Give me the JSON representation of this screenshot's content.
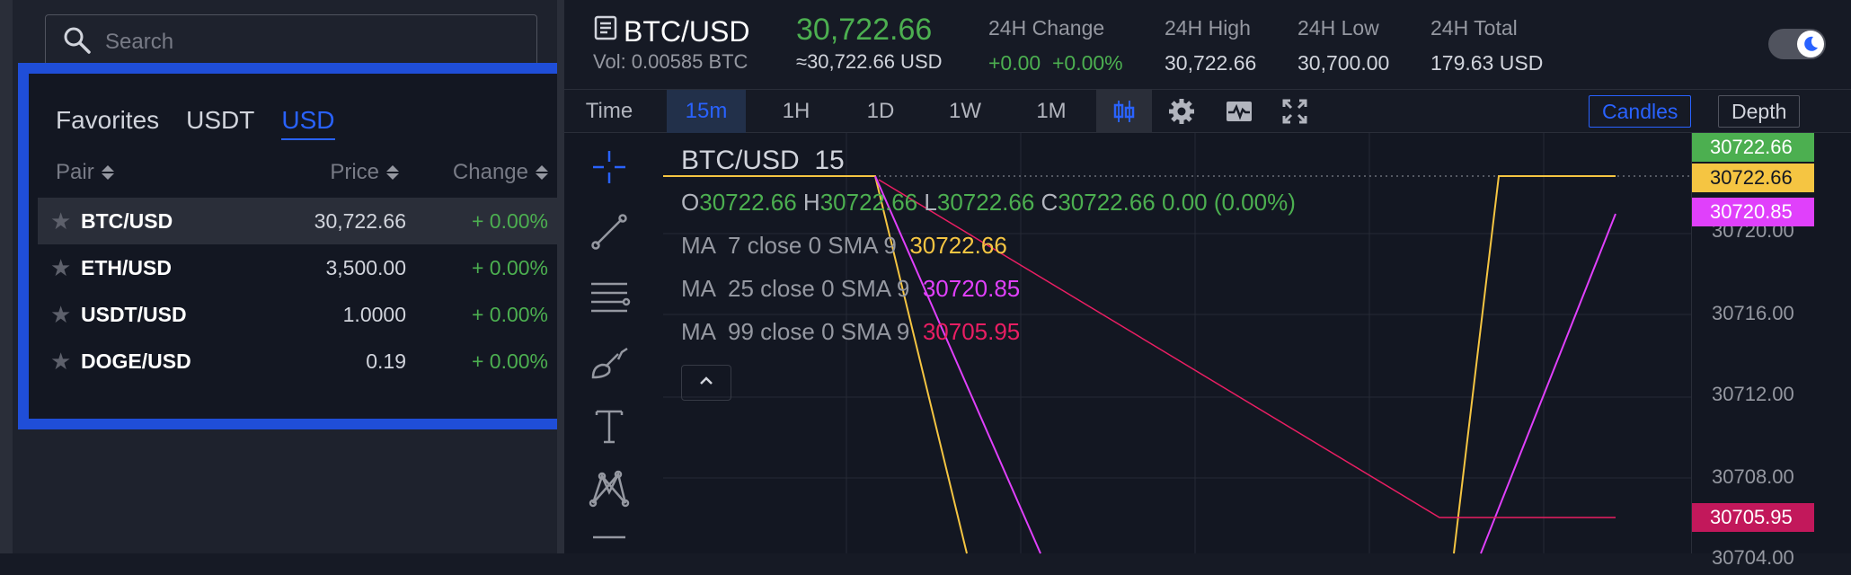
{
  "search": {
    "placeholder": "Search"
  },
  "pairs_panel": {
    "tabs": [
      {
        "label": "Favorites"
      },
      {
        "label": "USDT"
      },
      {
        "label": "USD"
      }
    ],
    "active_tab": "USD",
    "columns": {
      "pair": "Pair",
      "price": "Price",
      "change": "Change"
    },
    "rows": [
      {
        "symbol": "BTC/USD",
        "price": "30,722.66",
        "change": "+ 0.00%",
        "selected": true
      },
      {
        "symbol": "ETH/USD",
        "price": "3,500.00",
        "change": "+ 0.00%"
      },
      {
        "symbol": "USDT/USD",
        "price": "1.0000",
        "change": "+ 0.00%"
      },
      {
        "symbol": "DOGE/USD",
        "price": "0.19",
        "change": "+ 0.00%"
      }
    ]
  },
  "ticker": {
    "symbol": "BTC/USD",
    "last_price": "30,722.66",
    "volume": "Vol: 0.00585 BTC",
    "last_price_usd": "≈30,722.66 USD",
    "stats": [
      {
        "label": "24H Change",
        "value": "+0.00  +0.00%",
        "green": true
      },
      {
        "label": "24H High",
        "value": "30,722.66"
      },
      {
        "label": "24H Low",
        "value": "30,700.00"
      },
      {
        "label": "24H Total",
        "value": "179.63 USD"
      }
    ]
  },
  "toolbar": {
    "intervals": [
      {
        "label": "Time"
      },
      {
        "label": "15m",
        "active": true
      },
      {
        "label": "1H"
      },
      {
        "label": "1D"
      },
      {
        "label": "1W"
      },
      {
        "label": "1M"
      }
    ],
    "view_buttons": [
      {
        "label": "Candles",
        "active": true
      },
      {
        "label": "Depth"
      }
    ],
    "icons": [
      "candlestick-icon",
      "settings-gear-icon",
      "indicators-icon",
      "fullscreen-icon"
    ]
  },
  "drawing_tools": [
    "crosshair-icon",
    "trend-line-icon",
    "horizontal-lines-icon",
    "brush-icon",
    "text-icon",
    "pattern-icon"
  ],
  "legend": {
    "title": "BTC/USD  15",
    "ohlc": {
      "o_label": "O",
      "o": "30722.66",
      "h_label": "H",
      "h": "30722.66",
      "l_label": "L",
      "l": "30722.66",
      "c_label": "C",
      "c": "30722.66",
      "change": "0.00 (0.00%)"
    },
    "ma": [
      {
        "text": "MA  7 close 0 SMA 9",
        "value": "30722.66",
        "color": "#f5c542"
      },
      {
        "text": "MA  25 close 0 SMA 9",
        "value": "30720.85",
        "color": "#e040fb"
      },
      {
        "text": "MA  99 close 0 SMA 9",
        "value": "30705.95",
        "color": "#e91e63"
      }
    ]
  },
  "price_scale": {
    "ticks": [
      "30720.00",
      "30716.00",
      "30712.00",
      "30708.00",
      "30704.00"
    ],
    "labels": [
      {
        "value": "30722.66",
        "bg": "#4caf50",
        "fg": "#ffffff"
      },
      {
        "value": "30722.66",
        "bg": "#f5c542",
        "fg": "#131722"
      },
      {
        "value": "30720.85",
        "bg": "#e040fb",
        "fg": "#ffffff"
      },
      {
        "value": "30705.95",
        "bg": "#c2185b",
        "fg": "#ffffff"
      }
    ]
  },
  "colors": {
    "accent": "#2962ff",
    "panel_highlight": "#1f4ed8",
    "up": "#4caf50",
    "background": "#131722"
  }
}
